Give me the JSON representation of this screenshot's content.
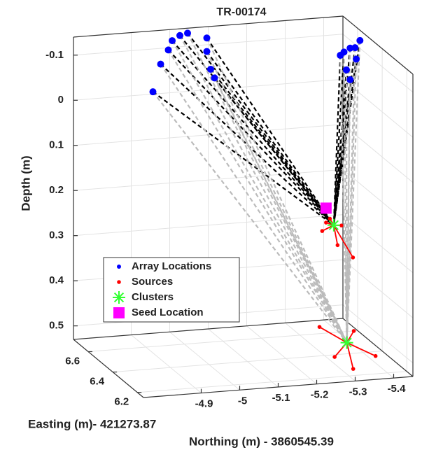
{
  "chart_data": {
    "type": "scatter3d",
    "title": "TR-00174",
    "xlabel": "Northing (m) - 3860545.39",
    "ylabel": "Easting (m)- 421273.87",
    "zlabel": "Depth (m)",
    "xlim": [
      -4.75,
      -5.45
    ],
    "ylim": [
      6.15,
      6.72
    ],
    "zlim": [
      -0.14,
      0.53
    ],
    "xticks": [
      -4.9,
      -5,
      -5.1,
      -5.2,
      -5.3,
      -5.4
    ],
    "yticks": [
      6.2,
      6.4,
      6.6
    ],
    "zticks": [
      -0.1,
      0,
      0.1,
      0.2,
      0.3,
      0.4,
      0.5
    ],
    "zreverse": true,
    "grid": true,
    "legend": "lower left",
    "series": [
      {
        "name": "Array Locations",
        "color": "#0000ff",
        "marker": "o",
        "x": [
          -4.95,
          -4.97,
          -4.99,
          -5.0,
          -5.02,
          -5.04,
          -5.09,
          -5.09,
          -5.1,
          -5.11,
          -5.44,
          -5.44,
          -5.44,
          -5.44,
          -5.44,
          -5.44,
          -5.44,
          -5.44
        ],
        "y": [
          6.7,
          6.7,
          6.7,
          6.7,
          6.7,
          6.7,
          6.7,
          6.7,
          6.7,
          6.7,
          6.71,
          6.68,
          6.63,
          6.59,
          6.55,
          6.66,
          6.63,
          6.58
        ],
        "z": [
          -0.01,
          -0.07,
          -0.1,
          -0.12,
          -0.13,
          -0.134,
          -0.12,
          -0.09,
          -0.05,
          -0.03,
          -0.056,
          -0.07,
          -0.09,
          -0.1,
          -0.125,
          -0.035,
          -0.02,
          -0.077
        ]
      },
      {
        "name": "Sources",
        "color": "#ff0000",
        "marker": ".",
        "x": [
          -5.32,
          -5.33,
          -5.36,
          -5.39,
          -5.35,
          -5.31,
          -5.37,
          -5.44,
          -5.33,
          -5.42,
          -5.32
        ],
        "y": [
          6.45,
          6.45,
          6.45,
          6.45,
          6.45,
          6.45,
          6.66,
          6.6,
          6.26,
          6.36,
          6.38
        ],
        "z": [
          0.248,
          0.24,
          0.257,
          0.33,
          0.3,
          0.266,
          0.53,
          0.53,
          0.53,
          0.53,
          0.53
        ]
      },
      {
        "name": "Clusters",
        "color": "#33ff33",
        "marker": "*",
        "x": [
          -5.34,
          -5.39
        ],
        "y": [
          6.45,
          6.5
        ],
        "z": [
          0.255,
          0.53
        ]
      },
      {
        "name": "Seed Location",
        "color": "#ff00ff",
        "marker": "s",
        "x": [
          -5.32
        ],
        "y": [
          6.45
        ],
        "z": [
          0.216
        ]
      }
    ]
  }
}
